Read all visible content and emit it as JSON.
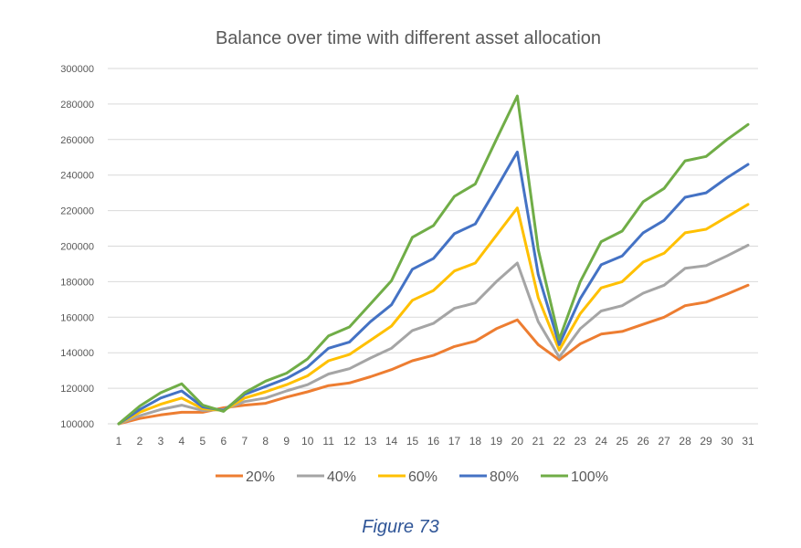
{
  "chart_data": {
    "type": "line",
    "title": "Balance over time with different asset allocation",
    "xlabel": "",
    "ylabel": "",
    "categories": [
      "1",
      "2",
      "3",
      "4",
      "5",
      "6",
      "7",
      "8",
      "9",
      "10",
      "11",
      "12",
      "13",
      "14",
      "15",
      "16",
      "17",
      "18",
      "19",
      "20",
      "21",
      "22",
      "23",
      "24",
      "25",
      "26",
      "27",
      "28",
      "29",
      "30",
      "31"
    ],
    "ylim": [
      100000,
      300000
    ],
    "yticks": [
      "100000",
      "120000",
      "140000",
      "160000",
      "180000",
      "200000",
      "220000",
      "240000",
      "260000",
      "280000",
      "300000"
    ],
    "grid": "horizontal",
    "legend_position": "bottom",
    "series": [
      {
        "name": "20%",
        "color": "#ed7d31",
        "values": [
          100000,
          103000,
          105000,
          106500,
          106500,
          109000,
          110500,
          111500,
          115000,
          118000,
          121500,
          123000,
          126500,
          130500,
          135500,
          138500,
          143500,
          146500,
          153500,
          158500,
          144500,
          136000,
          145000,
          150500,
          152000,
          156000,
          160000,
          166500,
          168500,
          173000,
          178000
        ]
      },
      {
        "name": "40%",
        "color": "#a5a5a5",
        "values": [
          100000,
          104500,
          108000,
          110500,
          107500,
          108000,
          112500,
          114500,
          118500,
          122000,
          128000,
          131000,
          137000,
          142500,
          152500,
          156500,
          165000,
          168000,
          180000,
          190500,
          157500,
          137500,
          153500,
          163500,
          166500,
          173500,
          178000,
          187500,
          189000,
          194500,
          200500
        ]
      },
      {
        "name": "60%",
        "color": "#ffc000",
        "values": [
          100000,
          106500,
          111000,
          114500,
          108500,
          107500,
          114500,
          118000,
          122000,
          127000,
          135500,
          139000,
          147000,
          155000,
          169500,
          175000,
          186000,
          190500,
          206000,
          221500,
          171000,
          141500,
          162000,
          176500,
          180000,
          191000,
          196000,
          207500,
          209500,
          216500,
          223500
        ]
      },
      {
        "name": "80%",
        "color": "#4472c4",
        "values": [
          100000,
          108000,
          114500,
          118500,
          109500,
          107500,
          116500,
          121000,
          125500,
          132000,
          142500,
          146000,
          157500,
          167000,
          187000,
          193000,
          207000,
          212500,
          232500,
          253000,
          184000,
          144500,
          170500,
          189500,
          194500,
          207500,
          214500,
          227500,
          230000,
          238500,
          246000
        ]
      },
      {
        "name": "100%",
        "color": "#70ad47",
        "values": [
          100000,
          110000,
          117500,
          122500,
          110500,
          107000,
          117500,
          124000,
          128500,
          136500,
          149500,
          154500,
          167500,
          180500,
          205000,
          211500,
          228000,
          235000,
          260000,
          284500,
          198000,
          147500,
          180000,
          202500,
          208500,
          225000,
          232500,
          248000,
          250500,
          260000,
          268500
        ]
      }
    ]
  },
  "caption": "Figure 73"
}
